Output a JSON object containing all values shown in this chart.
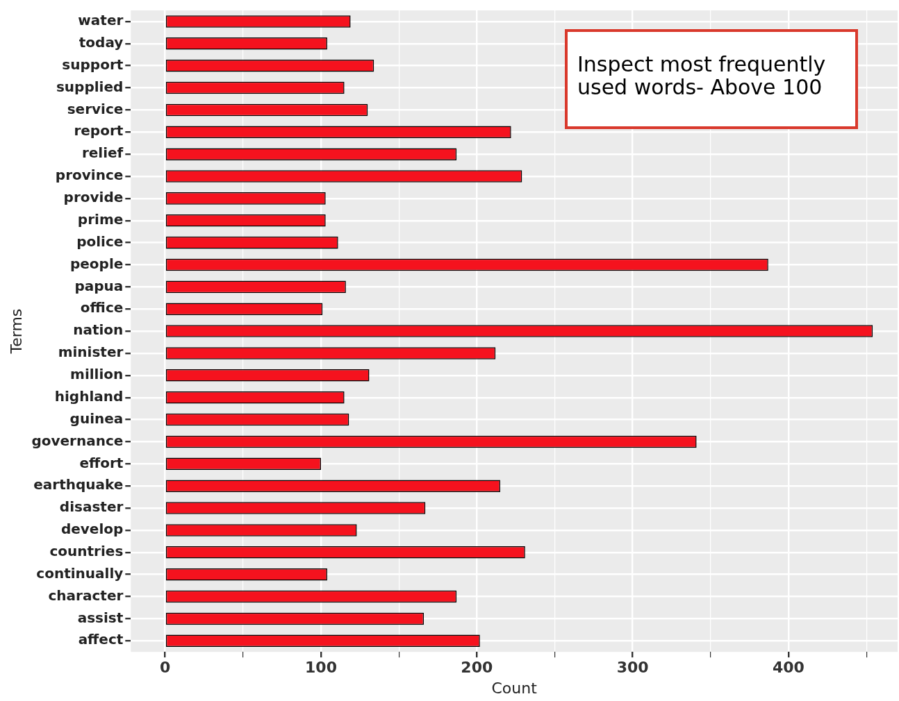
{
  "chart_data": {
    "type": "bar",
    "orientation": "horizontal",
    "xlabel": "Count",
    "ylabel": "Terms",
    "categories": [
      "water",
      "today",
      "support",
      "supplied",
      "service",
      "report",
      "relief",
      "province",
      "provide",
      "prime",
      "police",
      "people",
      "papua",
      "office",
      "nation",
      "minister",
      "million",
      "highland",
      "guinea",
      "governance",
      "effort",
      "earthquake",
      "disaster",
      "develop",
      "countries",
      "continually",
      "character",
      "assist",
      "affect"
    ],
    "values": [
      119,
      104,
      134,
      115,
      130,
      222,
      187,
      229,
      103,
      103,
      111,
      387,
      116,
      101,
      454,
      212,
      131,
      115,
      118,
      341,
      100,
      215,
      167,
      123,
      231,
      104,
      187,
      166,
      202
    ],
    "color": "#f5121e",
    "xlim": [
      -22,
      470
    ],
    "xticks": [
      0,
      {
        "value": 50,
        "label": null
      },
      100,
      {
        "value": 150,
        "label": null
      },
      200,
      {
        "value": 250,
        "label": null
      },
      300,
      {
        "value": 350,
        "label": null
      },
      400,
      {
        "value": 450,
        "label": null
      }
    ],
    "grid": true,
    "annotations": [
      "Inspect most frequently used words- Above 100"
    ]
  }
}
